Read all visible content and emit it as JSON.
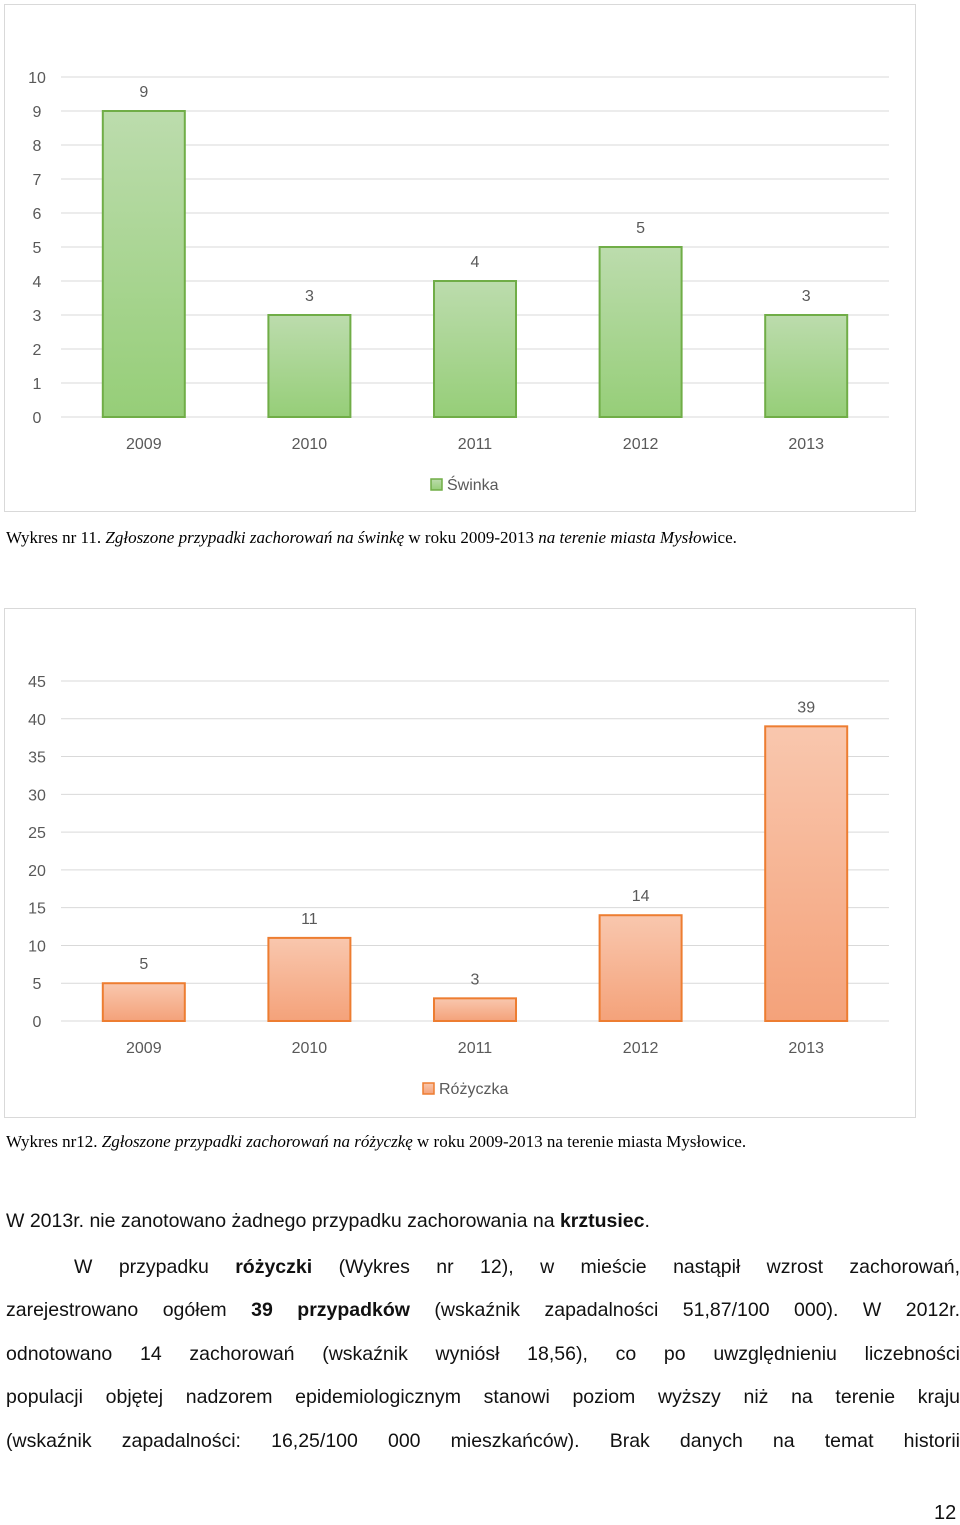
{
  "chart_data": [
    {
      "type": "bar",
      "categories": [
        "2009",
        "2010",
        "2011",
        "2012",
        "2013"
      ],
      "series": [
        {
          "name": "Świnka",
          "values": [
            9,
            3,
            4,
            5,
            3
          ]
        }
      ],
      "ylim": [
        0,
        10
      ],
      "yticks": [
        "0",
        "1",
        "2",
        "3",
        "4",
        "5",
        "6",
        "7",
        "8",
        "9",
        "10"
      ],
      "data_labels": true,
      "grid": true,
      "legend": "bottom",
      "colors": {
        "fill_top": "#bcdcad",
        "fill_bottom": "#96ce78",
        "stroke": "#70ad47"
      }
    },
    {
      "type": "bar",
      "categories": [
        "2009",
        "2010",
        "2011",
        "2012",
        "2013"
      ],
      "series": [
        {
          "name": "Różyczka",
          "values": [
            5,
            11,
            3,
            14,
            39
          ]
        }
      ],
      "ylim": [
        0,
        45
      ],
      "yticks": [
        "0",
        "5",
        "10",
        "15",
        "20",
        "25",
        "30",
        "35",
        "40",
        "45"
      ],
      "data_labels": true,
      "grid": true,
      "legend": "bottom",
      "colors": {
        "fill_top": "#f9c7ae",
        "fill_bottom": "#f4a27a",
        "stroke": "#ed7d31"
      }
    }
  ],
  "captions": {
    "c1_prefix": "Wykres nr 11. ",
    "c1_italic": "Zgłoszone przypadki zachorowań na świnkę",
    "c1_mid": " w roku 2009-2013 ",
    "c1_italic2": "na terenie miasta  Mysłow",
    "c1_end": "ice.",
    "c2_prefix": "Wykres nr12. ",
    "c2_italic": "Zgłoszone przypadki zachorowań na różyczkę",
    "c2_mid": " w roku 2009-2013 na terenie miasta  Mysłow",
    "c2_end": "ice."
  },
  "paragraph": {
    "l1_a": "W 2013r. nie zanotowano żadnego przypadku zachorowania na ",
    "l1_b": "krztusiec",
    "l1_c": ".",
    "l2_a": "W przypadku ",
    "l2_b": "różyczki",
    "l2_c": " (Wykres nr 12), w mieście nastąpił wzrost zachorowań,",
    "l3_a": "zarejestrowano ogółem ",
    "l3_b": "39 przypadków",
    "l3_c": " (wskaźnik zapadalności 51,87/100 000).  W 2012r.",
    "l4": "odnotowano 14 zachorowań (wskaźnik wyniósł 18,56), co po uwzględnieniu  liczebności",
    "l5": "populacji objętej nadzorem epidemiologicznym stanowi poziom wyższy niż na terenie kraju",
    "l6": "(wskaźnik zapadalności: 16,25/100 000 mieszkańców). Brak danych na temat historii"
  },
  "page_number": "12"
}
